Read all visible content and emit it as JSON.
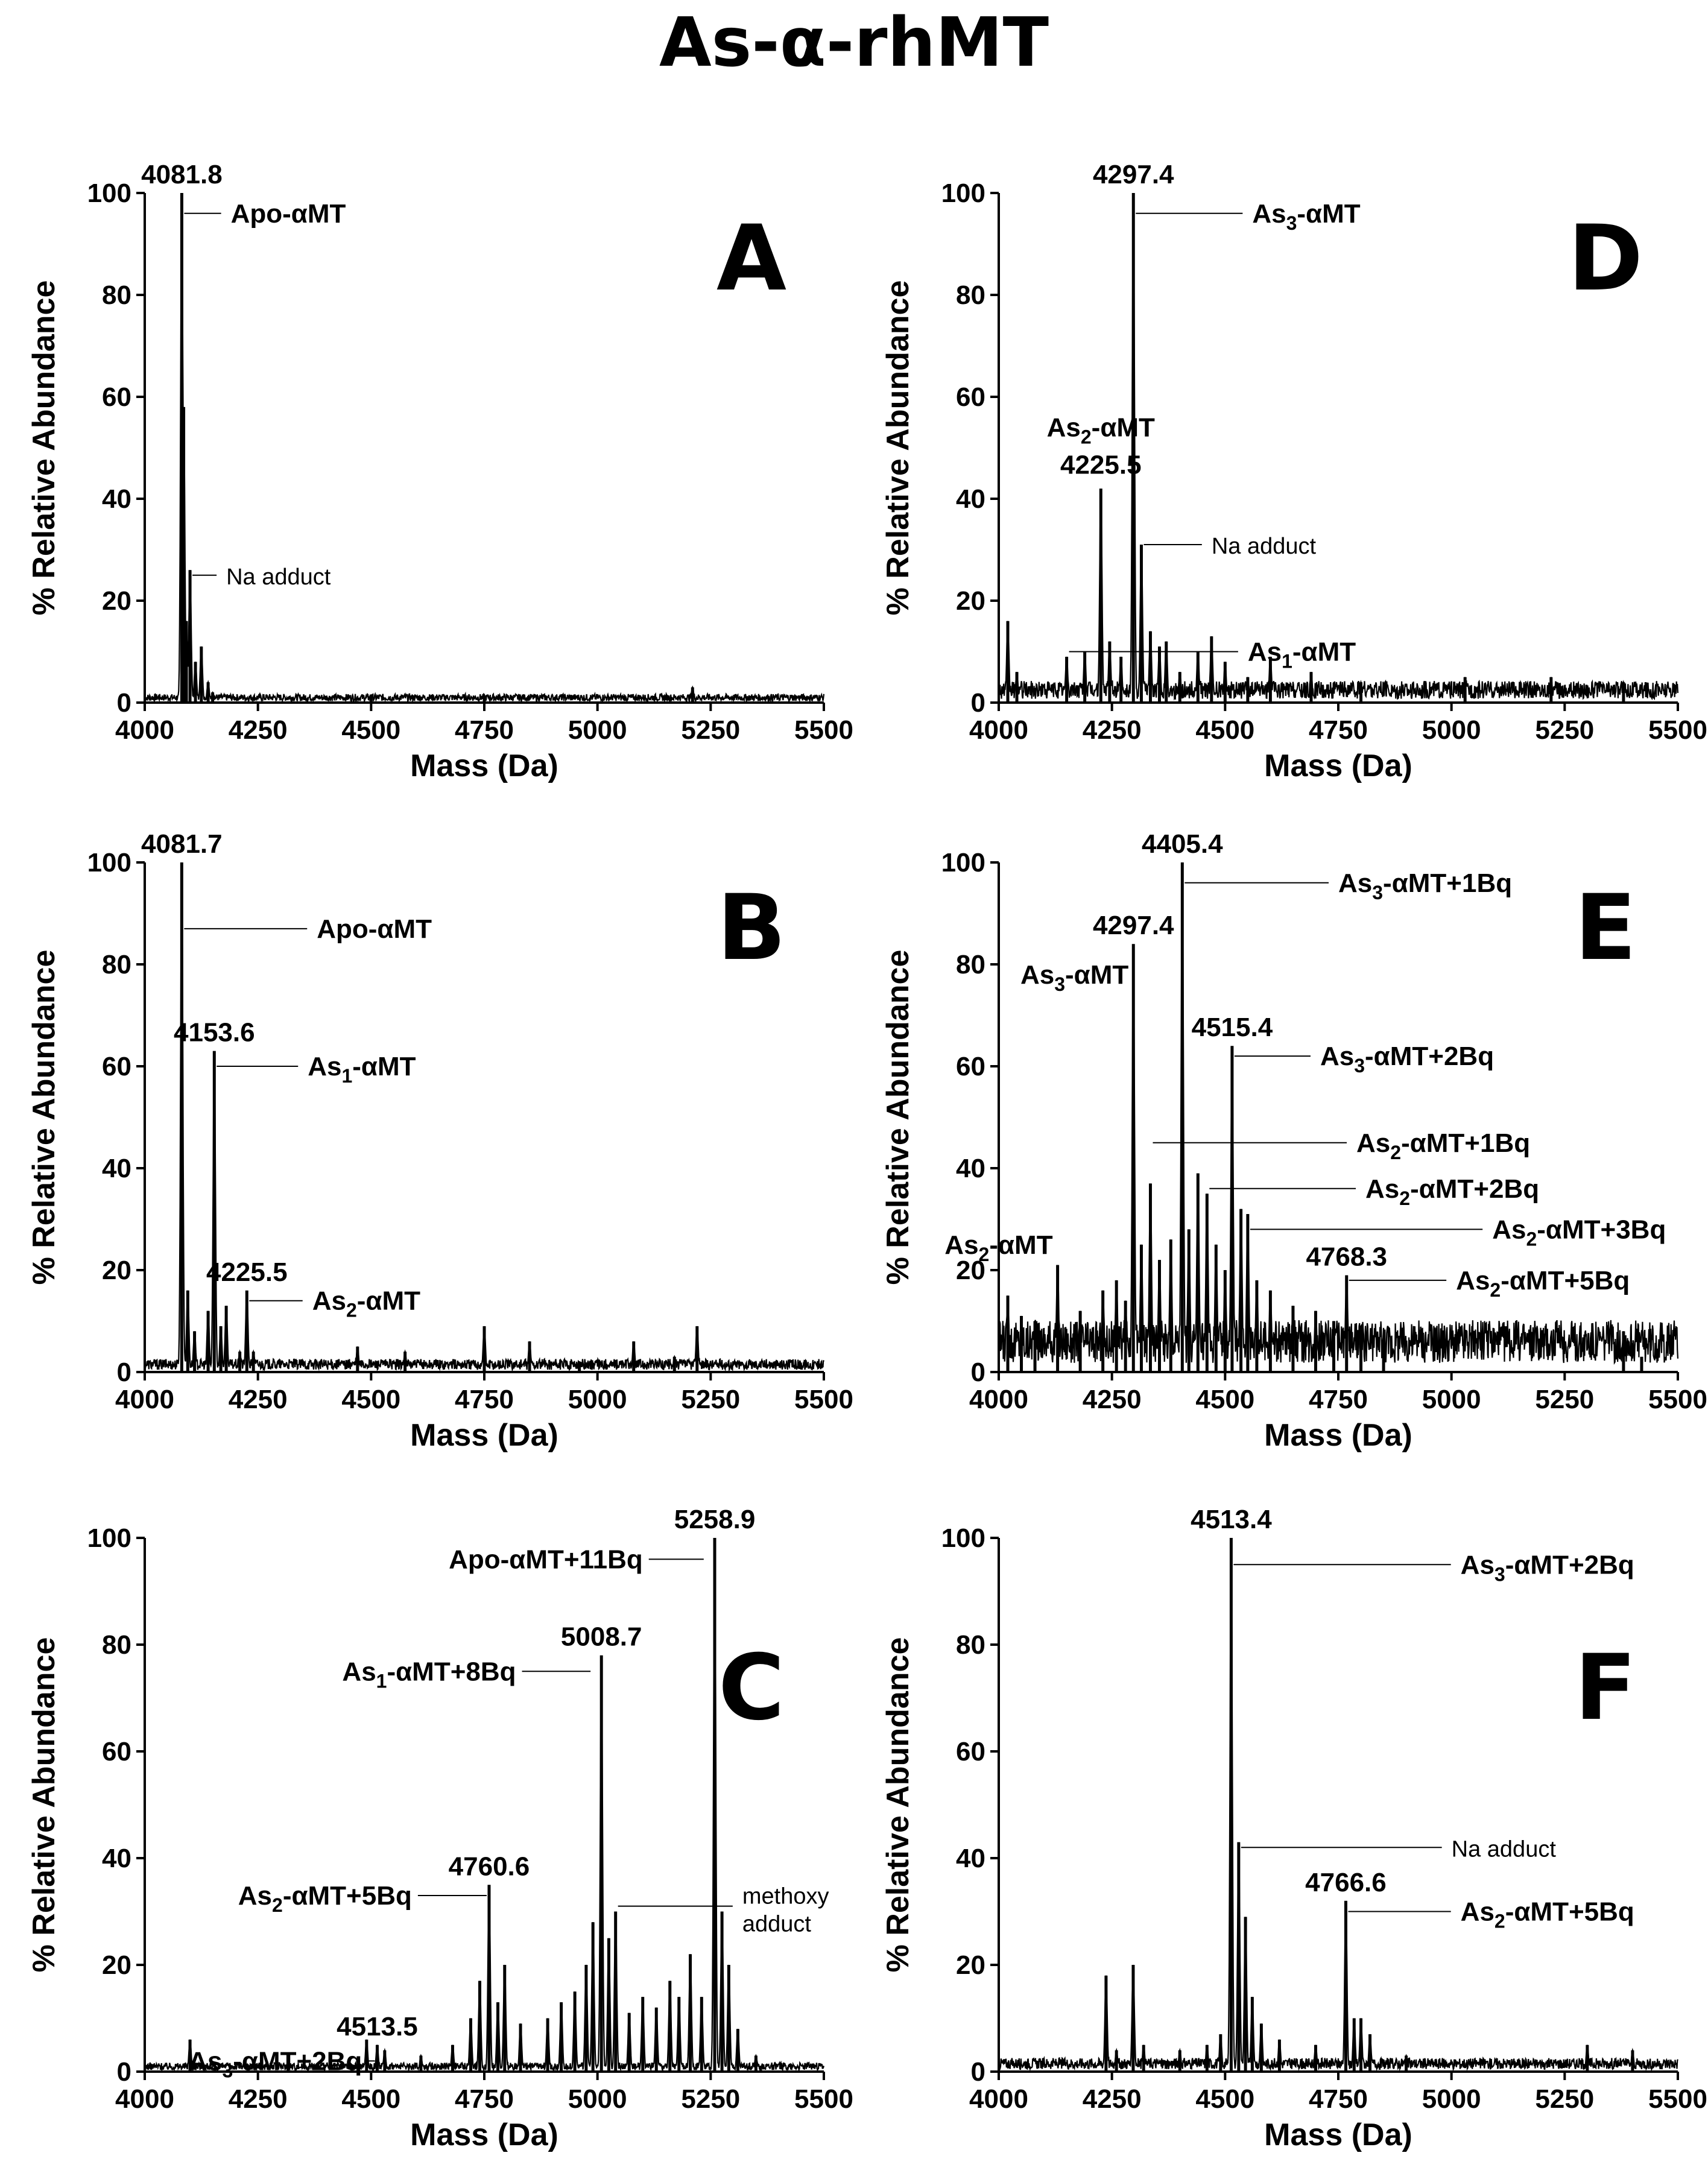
{
  "title": "As-α-rhMT",
  "chart_data": [
    {
      "type": "line",
      "panel": "A",
      "xlabel": "Mass (Da)",
      "ylabel": "% Relative Abundance",
      "xlim": [
        4000,
        5500
      ],
      "ylim": [
        0,
        100
      ],
      "xticks": [
        4000,
        4250,
        4500,
        4750,
        5000,
        5250,
        5500
      ],
      "yticks": [
        0,
        20,
        40,
        60,
        80,
        100
      ],
      "baseline": 1,
      "peaks": [
        [
          4081.8,
          100
        ],
        [
          4086,
          58
        ],
        [
          4100,
          26
        ],
        [
          4092,
          16
        ],
        [
          4112,
          8
        ],
        [
          4125,
          11
        ],
        [
          4140,
          4
        ],
        [
          4150,
          2
        ],
        [
          4500,
          1.5
        ],
        [
          4750,
          1
        ],
        [
          5210,
          3
        ]
      ],
      "peak_labels": [
        {
          "x": 4081.8,
          "y": 100,
          "text": "4081.8"
        }
      ],
      "annotations": [
        {
          "text": "Apo-αMT",
          "x": 4081.8,
          "y": 96,
          "lx": 4190,
          "ly": 96,
          "bold": true
        },
        {
          "text": "Na adduct",
          "x": 4100,
          "y": 25,
          "lx": 4180,
          "ly": 25,
          "bold": false
        }
      ]
    },
    {
      "type": "line",
      "panel": "B",
      "xlabel": "Mass (Da)",
      "ylabel": "% Relative Abundance",
      "xlim": [
        4000,
        5500
      ],
      "ylim": [
        0,
        100
      ],
      "xticks": [
        4000,
        4250,
        4500,
        4750,
        5000,
        5250,
        5500
      ],
      "yticks": [
        0,
        20,
        40,
        60,
        80,
        100
      ],
      "baseline": 1.5,
      "peaks": [
        [
          4081.7,
          100
        ],
        [
          4095,
          16
        ],
        [
          4110,
          8
        ],
        [
          4140,
          12
        ],
        [
          4153.6,
          63
        ],
        [
          4168,
          9
        ],
        [
          4180,
          13
        ],
        [
          4210,
          4
        ],
        [
          4225.5,
          16
        ],
        [
          4240,
          4
        ],
        [
          4470,
          5
        ],
        [
          4575,
          4
        ],
        [
          4750,
          9
        ],
        [
          4850,
          6
        ],
        [
          4960,
          2
        ],
        [
          5080,
          6
        ],
        [
          5170,
          3
        ],
        [
          5220,
          9
        ]
      ],
      "peak_labels": [
        {
          "x": 4081.7,
          "y": 100,
          "text": "4081.7"
        },
        {
          "x": 4153.6,
          "y": 63,
          "text": "4153.6"
        },
        {
          "x": 4225.5,
          "y": 16,
          "text": "4225.5"
        }
      ],
      "annotations": [
        {
          "text": "Apo-αMT",
          "x": 4081.7,
          "y": 87,
          "lx": 4380,
          "ly": 87,
          "bold": true
        },
        {
          "text": "As1-αMT",
          "x": 4153.6,
          "y": 60,
          "lx": 4360,
          "ly": 60,
          "bold": true
        },
        {
          "text": "As2-αMT",
          "x": 4225.5,
          "y": 14,
          "lx": 4370,
          "ly": 14,
          "bold": true
        }
      ]
    },
    {
      "type": "line",
      "panel": "C",
      "xlabel": "Mass (Da)",
      "ylabel": "% Relative Abundance",
      "xlim": [
        4000,
        5500
      ],
      "ylim": [
        0,
        100
      ],
      "xticks": [
        4000,
        4250,
        4500,
        4750,
        5000,
        5250,
        5500
      ],
      "yticks": [
        0,
        20,
        40,
        60,
        80,
        100
      ],
      "baseline": 1,
      "peaks": [
        [
          4100,
          6
        ],
        [
          4490,
          6
        ],
        [
          4513.5,
          5
        ],
        [
          4530,
          4
        ],
        [
          4610,
          3
        ],
        [
          4680,
          5
        ],
        [
          4720,
          10
        ],
        [
          4740,
          17
        ],
        [
          4760.6,
          35
        ],
        [
          4780,
          13
        ],
        [
          4795,
          20
        ],
        [
          4830,
          9
        ],
        [
          4890,
          10
        ],
        [
          4920,
          13
        ],
        [
          4950,
          15
        ],
        [
          4975,
          20
        ],
        [
          4990,
          28
        ],
        [
          5008.7,
          78
        ],
        [
          5025,
          25
        ],
        [
          5040,
          30
        ],
        [
          5070,
          11
        ],
        [
          5100,
          14
        ],
        [
          5130,
          12
        ],
        [
          5160,
          17
        ],
        [
          5180,
          14
        ],
        [
          5205,
          22
        ],
        [
          5230,
          14
        ],
        [
          5258.9,
          100
        ],
        [
          5275,
          30
        ],
        [
          5290,
          20
        ],
        [
          5310,
          8
        ],
        [
          5350,
          3
        ]
      ],
      "peak_labels": [
        {
          "x": 5258.9,
          "y": 100,
          "text": "5258.9"
        },
        {
          "x": 5008.7,
          "y": 78,
          "text": "5008.7"
        },
        {
          "x": 4760.6,
          "y": 35,
          "text": "4760.6"
        },
        {
          "x": 4513.5,
          "y": 5,
          "text": "4513.5"
        }
      ],
      "annotations": [
        {
          "text": "Apo-αMT+11Bq",
          "x": 5240,
          "y": 96,
          "lx": 5100,
          "ly": 96,
          "bold": true,
          "side": "left"
        },
        {
          "text": "As1-αMT+8Bq",
          "x": 4990,
          "y": 75,
          "lx": 4820,
          "ly": 75,
          "bold": true,
          "side": "left"
        },
        {
          "text": "As2-αMT+5Bq",
          "x": 4760.6,
          "y": 33,
          "lx": 4590,
          "ly": 33,
          "bold": true,
          "side": "left"
        },
        {
          "text": "As3-αMT+2Bq",
          "x": 4513.5,
          "y": 2,
          "lx": 4480,
          "ly": 2,
          "bold": true,
          "side": "left"
        },
        {
          "text": "methoxy adduct",
          "x": 5040,
          "y": 31,
          "lx": 5320,
          "ly": 31,
          "bold": false
        }
      ]
    },
    {
      "type": "line",
      "panel": "D",
      "xlabel": "Mass (Da)",
      "ylabel": "% Relative Abundance",
      "xlim": [
        4000,
        5500
      ],
      "ylim": [
        0,
        100
      ],
      "xticks": [
        4000,
        4250,
        4500,
        4750,
        5000,
        5250,
        5500
      ],
      "yticks": [
        0,
        20,
        40,
        60,
        80,
        100
      ],
      "baseline": 2.5,
      "peaks": [
        [
          4020,
          16
        ],
        [
          4040,
          6
        ],
        [
          4150,
          9
        ],
        [
          4190,
          10
        ],
        [
          4225.5,
          42
        ],
        [
          4245,
          12
        ],
        [
          4270,
          9
        ],
        [
          4297.4,
          100
        ],
        [
          4315,
          31
        ],
        [
          4335,
          14
        ],
        [
          4355,
          11
        ],
        [
          4370,
          12
        ],
        [
          4400,
          6
        ],
        [
          4440,
          10
        ],
        [
          4470,
          13
        ],
        [
          4500,
          8
        ],
        [
          4550,
          5
        ],
        [
          4600,
          9
        ],
        [
          4690,
          6
        ],
        [
          4800,
          4
        ],
        [
          5030,
          5
        ],
        [
          5220,
          5
        ],
        [
          5380,
          4
        ]
      ],
      "peak_labels": [
        {
          "x": 4297.4,
          "y": 100,
          "text": "4297.4"
        },
        {
          "x": 4225.5,
          "y": 43,
          "text": "4225.5"
        }
      ],
      "annotations": [
        {
          "text": "As3-αMT",
          "x": 4297.4,
          "y": 96,
          "lx": 4560,
          "ly": 96,
          "bold": true
        },
        {
          "text": "As2-αMT",
          "x": 4225.5,
          "y": 54,
          "lx": 4225.5,
          "ly": 54,
          "bold": true,
          "side": "above"
        },
        {
          "text": "Na adduct",
          "x": 4315,
          "y": 31,
          "lx": 4470,
          "ly": 31,
          "bold": false
        },
        {
          "text": "As1-αMT",
          "x": 4150,
          "y": 10,
          "lx": 4550,
          "ly": 10,
          "bold": true
        }
      ]
    },
    {
      "type": "line",
      "panel": "E",
      "xlabel": "Mass (Da)",
      "ylabel": "% Relative Abundance",
      "xlim": [
        4000,
        5500
      ],
      "ylim": [
        0,
        100
      ],
      "xticks": [
        4000,
        4250,
        4500,
        4750,
        5000,
        5250,
        5500
      ],
      "yticks": [
        0,
        20,
        40,
        60,
        80,
        100
      ],
      "baseline": 6,
      "peaks": [
        [
          4020,
          15
        ],
        [
          4050,
          11
        ],
        [
          4080,
          10
        ],
        [
          4130,
          21
        ],
        [
          4180,
          12
        ],
        [
          4230,
          16
        ],
        [
          4260,
          18
        ],
        [
          4280,
          14
        ],
        [
          4297.4,
          84
        ],
        [
          4315,
          25
        ],
        [
          4335,
          37
        ],
        [
          4355,
          22
        ],
        [
          4380,
          26
        ],
        [
          4405.4,
          100
        ],
        [
          4420,
          28
        ],
        [
          4440,
          39
        ],
        [
          4460,
          35
        ],
        [
          4480,
          25
        ],
        [
          4500,
          20
        ],
        [
          4515.4,
          64
        ],
        [
          4535,
          32
        ],
        [
          4550,
          31
        ],
        [
          4570,
          18
        ],
        [
          4600,
          16
        ],
        [
          4650,
          13
        ],
        [
          4700,
          12
        ],
        [
          4740,
          10
        ],
        [
          4768.3,
          19
        ],
        [
          4800,
          9
        ],
        [
          4850,
          6
        ],
        [
          5380,
          8
        ],
        [
          5420,
          3
        ]
      ],
      "peak_labels": [
        {
          "x": 4405.4,
          "y": 100,
          "text": "4405.4"
        },
        {
          "x": 4297.4,
          "y": 84,
          "text": "4297.4"
        },
        {
          "x": 4515.4,
          "y": 64,
          "text": "4515.4"
        },
        {
          "x": 4768.3,
          "y": 19,
          "text": "4768.3"
        }
      ],
      "annotations": [
        {
          "text": "As3-αMT+1Bq",
          "x": 4405.4,
          "y": 96,
          "lx": 4750,
          "ly": 96,
          "bold": true
        },
        {
          "text": "As3-αMT",
          "x": 4297.4,
          "y": 78,
          "lx": 4297.4,
          "ly": 78,
          "bold": true,
          "side": "leftpeak"
        },
        {
          "text": "As3-αMT+2Bq",
          "x": 4515.4,
          "y": 62,
          "lx": 4710,
          "ly": 62,
          "bold": true
        },
        {
          "text": "As2-αMT+1Bq",
          "x": 4335,
          "y": 45,
          "lx": 4790,
          "ly": 45,
          "bold": true
        },
        {
          "text": "As2-αMT+2Bq",
          "x": 4460,
          "y": 36,
          "lx": 4810,
          "ly": 36,
          "bold": true
        },
        {
          "text": "As2-αMT+3Bq",
          "x": 4550,
          "y": 28,
          "lx": 5090,
          "ly": 28,
          "bold": true
        },
        {
          "text": "As2-αMT",
          "x": 4130,
          "y": 25,
          "lx": 4130,
          "ly": 25,
          "bold": true,
          "side": "leftpeak"
        },
        {
          "text": "As2-αMT+5Bq",
          "x": 4768.3,
          "y": 18,
          "lx": 5010,
          "ly": 18,
          "bold": true
        }
      ]
    },
    {
      "type": "line",
      "panel": "F",
      "xlabel": "Mass (Da)",
      "ylabel": "% Relative Abundance",
      "xlim": [
        4000,
        5500
      ],
      "ylim": [
        0,
        100
      ],
      "xticks": [
        4000,
        4250,
        4500,
        4750,
        5000,
        5250,
        5500
      ],
      "yticks": [
        0,
        20,
        40,
        60,
        80,
        100
      ],
      "baseline": 1.5,
      "peaks": [
        [
          4237,
          18
        ],
        [
          4260,
          4
        ],
        [
          4297,
          20
        ],
        [
          4320,
          5
        ],
        [
          4400,
          4
        ],
        [
          4460,
          5
        ],
        [
          4490,
          7
        ],
        [
          4513.4,
          100
        ],
        [
          4530,
          43
        ],
        [
          4545,
          29
        ],
        [
          4560,
          14
        ],
        [
          4580,
          9
        ],
        [
          4620,
          6
        ],
        [
          4700,
          5
        ],
        [
          4766.6,
          32
        ],
        [
          4785,
          10
        ],
        [
          4800,
          10
        ],
        [
          4820,
          7
        ],
        [
          4900,
          3
        ],
        [
          5300,
          5
        ],
        [
          5400,
          4
        ]
      ],
      "peak_labels": [
        {
          "x": 4513.4,
          "y": 100,
          "text": "4513.4"
        },
        {
          "x": 4766.6,
          "y": 32,
          "text": "4766.6"
        }
      ],
      "annotations": [
        {
          "text": "As3-αMT+2Bq",
          "x": 4513.4,
          "y": 95,
          "lx": 5020,
          "ly": 95,
          "bold": true
        },
        {
          "text": "Na adduct",
          "x": 4530,
          "y": 42,
          "lx": 5000,
          "ly": 42,
          "bold": false
        },
        {
          "text": "As2-αMT+5Bq",
          "x": 4766.6,
          "y": 30,
          "lx": 5020,
          "ly": 30,
          "bold": true
        }
      ]
    }
  ]
}
